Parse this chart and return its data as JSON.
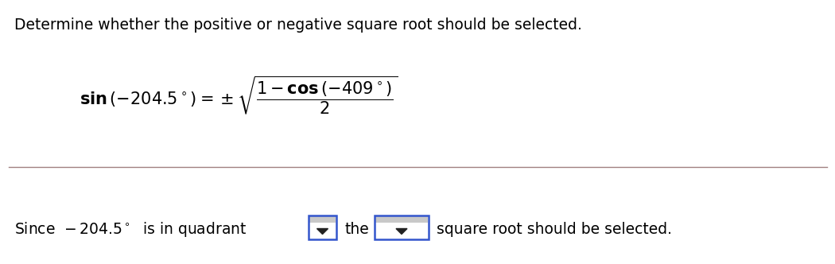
{
  "title": "Determine whether the positive or negative square root should be selected.",
  "title_fontsize": 13.5,
  "title_color": "#000000",
  "bg_color": "#ffffff",
  "divider_color": "#a08080",
  "dropdown_border_color": "#3355cc",
  "font_size_formula": 15,
  "font_size_bottom": 13.5
}
